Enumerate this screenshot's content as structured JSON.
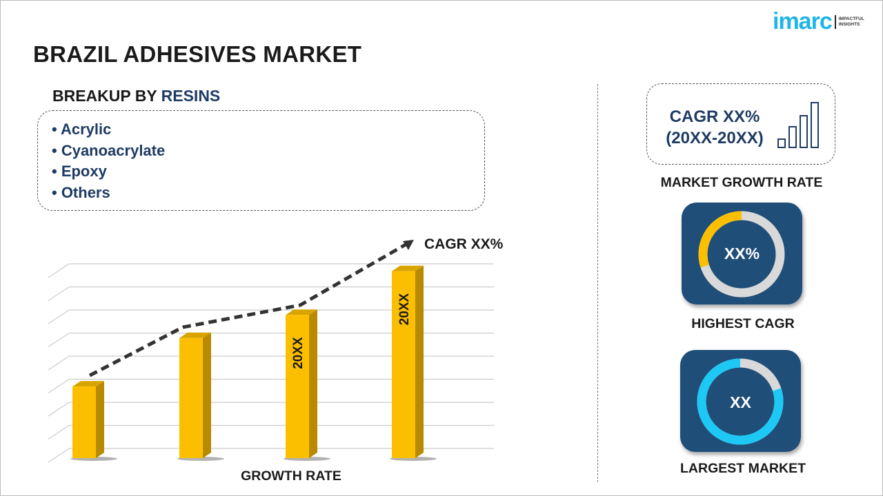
{
  "title": "BRAZIL ADHESIVES MARKET",
  "logo": {
    "word": "imarc",
    "tagline_1": "IMPACTFUL",
    "tagline_2": "INSIGHTS"
  },
  "breakup": {
    "prefix": "BREAKUP BY ",
    "accent": "RESINS",
    "items": [
      "• Acrylic",
      "• Cyanoacrylate",
      "• Epoxy",
      "• Others"
    ]
  },
  "right": {
    "cagr_line1": "CAGR XX%",
    "cagr_line2": "(20XX-20XX)",
    "market_growth_label": "MARKET GROWTH RATE",
    "highest_cagr_value": "XX%",
    "highest_cagr_label": "HIGHEST CAGR",
    "highest_cagr_fill": 0.3,
    "largest_market_value": "XX",
    "largest_market_label": "LARGEST MARKET",
    "largest_market_fill": 0.8
  },
  "colors": {
    "navy": "#1f3b63",
    "tile": "#1f4e79",
    "bar": "#fcbf00",
    "bar_side": "#b88a00",
    "cyan": "#1ec8f5",
    "yellow": "#fcbf00",
    "ring_gray": "#d9d9d9",
    "brand": "#1fb5e8"
  },
  "chart_data": {
    "type": "bar",
    "categories": [
      "",
      "",
      "",
      ""
    ],
    "values": [
      3.1,
      5.2,
      6.2,
      8.1
    ],
    "data_labels": [
      "",
      "",
      "20XX",
      "20XX"
    ],
    "trend_annotation": "CAGR XX%",
    "xlabel": "GROWTH RATE",
    "ylabel": "",
    "ylim": [
      0,
      8.5
    ],
    "grid": true,
    "style": "3d"
  }
}
